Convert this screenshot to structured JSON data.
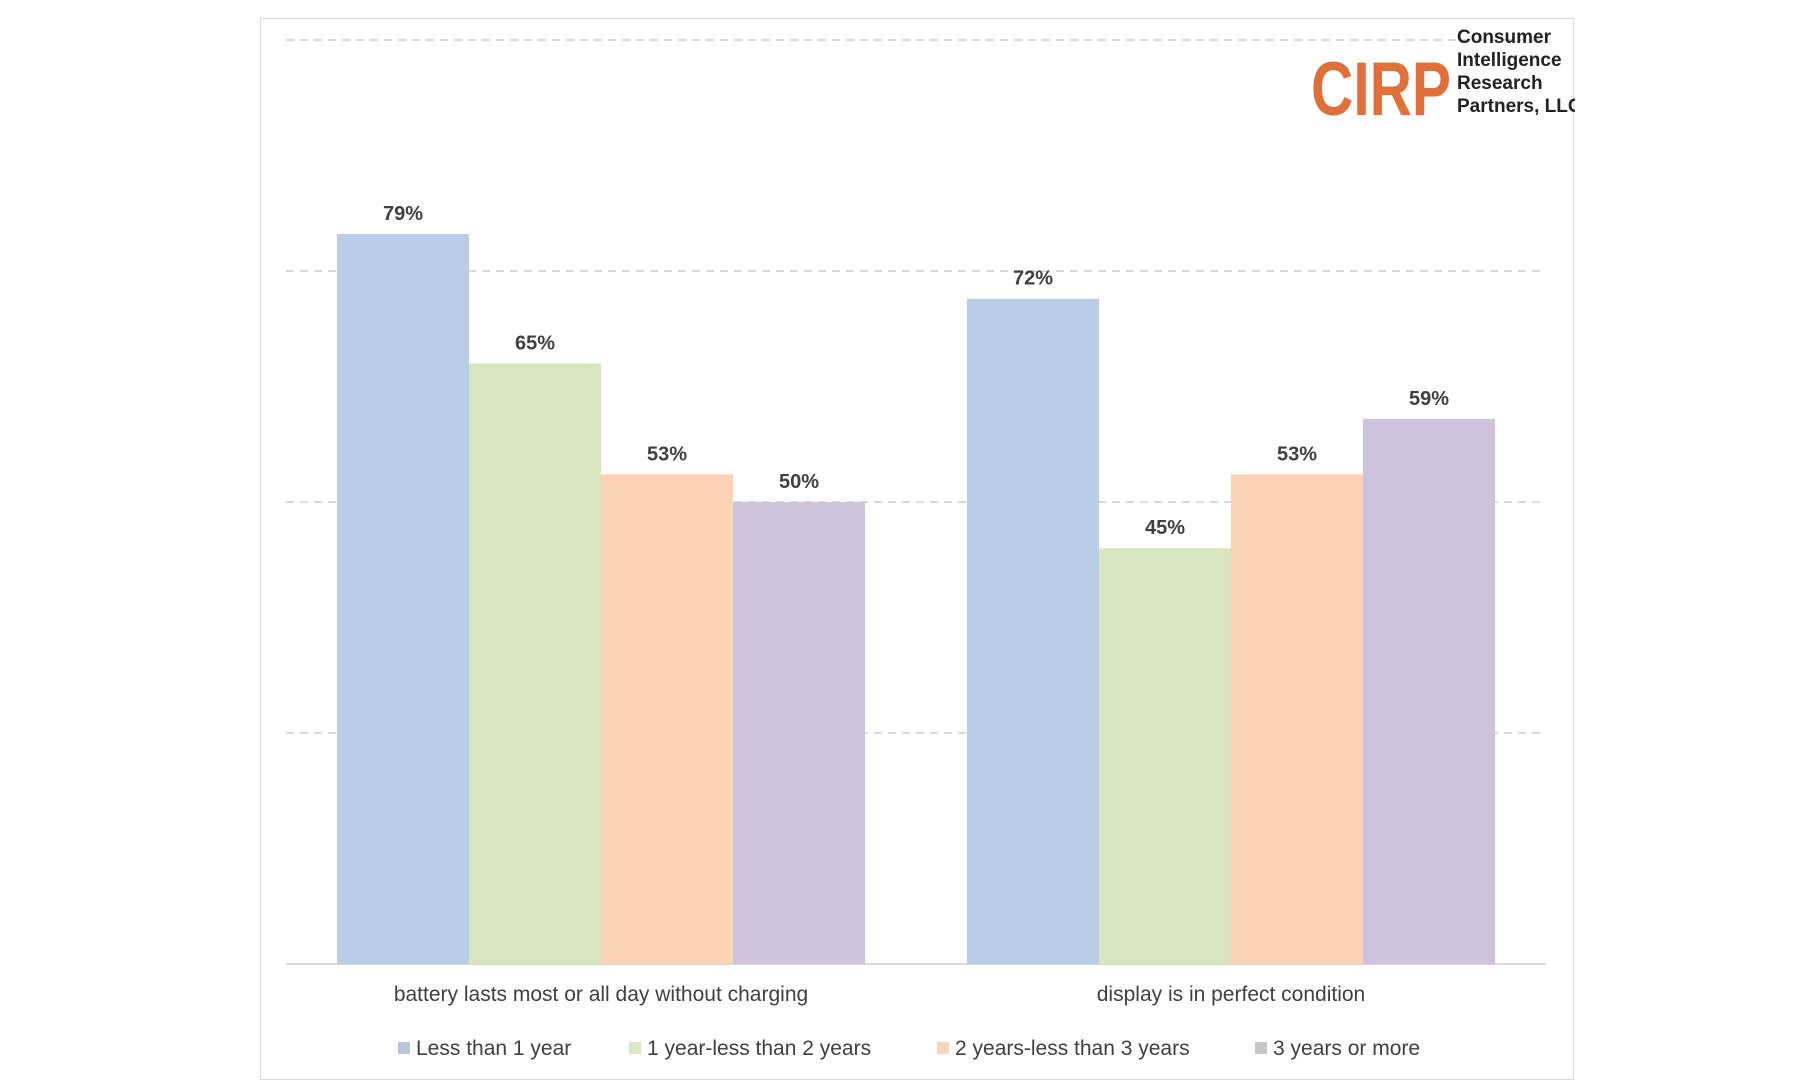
{
  "logo": {
    "letters": "CIRP",
    "lines": [
      "Consumer",
      "Intelligence",
      "Research",
      "Partners, LLC"
    ],
    "letter_color": "#e0703a"
  },
  "chart_data": {
    "type": "bar",
    "categories": [
      "battery lasts most or all day without charging",
      "display is in perfect condition"
    ],
    "series": [
      {
        "name": "Less than 1 year",
        "values": [
          79,
          72
        ],
        "labels": [
          "79%",
          "72%"
        ],
        "color": "#b9cde8",
        "legend_color": "#b9c7db"
      },
      {
        "name": "1 year-less than 2 years",
        "values": [
          65,
          45
        ],
        "labels": [
          "65%",
          "45%"
        ],
        "color": "#d8e6c0",
        "legend_color": "#dbe6c6"
      },
      {
        "name": "2 years-less than 3 years",
        "values": [
          53,
          53
        ],
        "labels": [
          "53%",
          "53%"
        ],
        "color": "#fcd4b5",
        "legend_color": "#fad6bb"
      },
      {
        "name": "3 years or more",
        "values": [
          50,
          59
        ],
        "labels": [
          "50%",
          "59%"
        ],
        "color": "#cdc3dc",
        "legend_color": "#c8c8c8"
      }
    ],
    "ylim": [
      0,
      100
    ],
    "gridlines": [
      25,
      50,
      75,
      100
    ],
    "grid": true,
    "legend_position": "bottom",
    "title": "",
    "xlabel": "",
    "ylabel": ""
  }
}
